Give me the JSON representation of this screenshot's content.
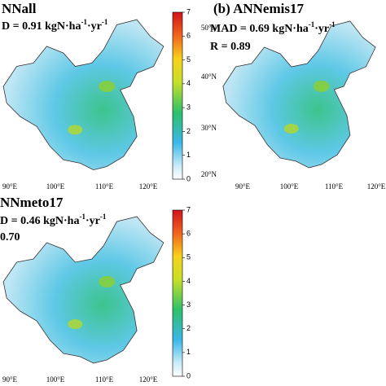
{
  "panels": [
    {
      "title": "NNall",
      "mad": [
        "D = 0.91 kgN·ha",
        "-1",
        "·yr",
        "-1"
      ],
      "colorbar_ticks": [
        0,
        1,
        2,
        3,
        4,
        5,
        6,
        7
      ],
      "x_labels": [
        "90°E",
        "100°E",
        "110°E",
        "120°E"
      ]
    },
    {
      "title": "(b) ANNemis17",
      "mad": [
        "MAD = 0.69 kgN·ha",
        "-1",
        "·yr",
        "-1"
      ],
      "r": "R = 0.89",
      "x_labels": [
        "90°E",
        "100°E",
        "110°E",
        "120°E"
      ],
      "y_labels": [
        "50°N",
        "40°N",
        "30°N",
        "20°N"
      ]
    },
    {
      "title": "NNmeto17",
      "mad": [
        "D = 0.46 kgN·ha",
        "-1",
        "·yr",
        "-1"
      ],
      "r": "0.70",
      "colorbar_ticks": [
        0,
        1,
        2,
        3,
        4,
        5,
        6,
        7
      ],
      "x_labels": [
        "90°E",
        "100°E",
        "110°E",
        "120°E"
      ]
    }
  ]
}
